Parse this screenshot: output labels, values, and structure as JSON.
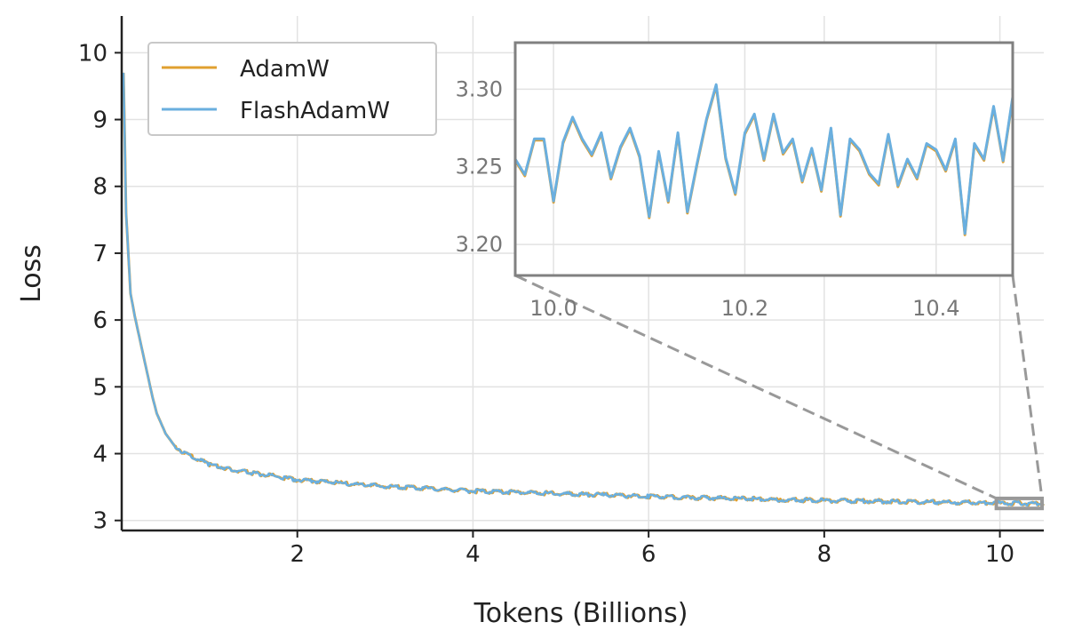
{
  "chart_data": {
    "type": "line",
    "xlabel": "Tokens (Billions)",
    "ylabel": "Loss",
    "xlim": [
      0,
      10.5
    ],
    "ylim": [
      2.85,
      10.55
    ],
    "xticks": [
      2,
      4,
      6,
      8,
      10
    ],
    "yticks": [
      3,
      4,
      5,
      6,
      7,
      8,
      9,
      10
    ],
    "grid": true,
    "legend": "upper-left",
    "series": [
      {
        "name": "AdamW",
        "color": "#e0a030",
        "x": [
          0.02,
          0.05,
          0.1,
          0.15,
          0.2,
          0.25,
          0.3,
          0.35,
          0.4,
          0.5,
          0.6,
          0.7,
          0.8,
          1.0,
          1.25,
          1.5,
          2.0,
          2.5,
          3.0,
          3.5,
          4.0,
          4.5,
          5.0,
          5.5,
          6.0,
          6.5,
          7.0,
          7.5,
          8.0,
          8.5,
          9.0,
          9.5,
          10.0,
          10.5
        ],
        "y": [
          9.7,
          7.6,
          6.4,
          6.05,
          5.75,
          5.45,
          5.15,
          4.85,
          4.6,
          4.3,
          4.12,
          4.02,
          3.95,
          3.84,
          3.76,
          3.71,
          3.61,
          3.56,
          3.51,
          3.48,
          3.44,
          3.42,
          3.4,
          3.38,
          3.36,
          3.34,
          3.33,
          3.31,
          3.3,
          3.29,
          3.28,
          3.27,
          3.26,
          3.25
        ]
      },
      {
        "name": "FlashAdamW",
        "color": "#6aafdf",
        "x": [
          0.02,
          0.05,
          0.1,
          0.15,
          0.2,
          0.25,
          0.3,
          0.35,
          0.4,
          0.5,
          0.6,
          0.7,
          0.8,
          1.0,
          1.25,
          1.5,
          2.0,
          2.5,
          3.0,
          3.5,
          4.0,
          4.5,
          5.0,
          5.5,
          6.0,
          6.5,
          7.0,
          7.5,
          8.0,
          8.5,
          9.0,
          9.5,
          10.0,
          10.5
        ],
        "y": [
          9.7,
          7.6,
          6.4,
          6.05,
          5.75,
          5.45,
          5.15,
          4.85,
          4.6,
          4.3,
          4.12,
          4.02,
          3.95,
          3.84,
          3.76,
          3.71,
          3.61,
          3.56,
          3.51,
          3.48,
          3.44,
          3.42,
          3.4,
          3.38,
          3.36,
          3.34,
          3.33,
          3.31,
          3.3,
          3.29,
          3.28,
          3.27,
          3.26,
          3.25
        ]
      }
    ],
    "inset": {
      "xlim": [
        9.96,
        10.48
      ],
      "ylim": [
        3.18,
        3.33
      ],
      "xticks": [
        10.0,
        10.2,
        10.4
      ],
      "xtick_labels": [
        "10.0",
        "10.2",
        "10.4"
      ],
      "yticks": [
        3.2,
        3.25,
        3.3
      ],
      "ytick_labels": [
        "3.20",
        "3.25",
        "3.30"
      ],
      "x": [
        9.96,
        9.97,
        9.98,
        9.99,
        10.0,
        10.01,
        10.02,
        10.03,
        10.04,
        10.05,
        10.06,
        10.07,
        10.08,
        10.09,
        10.1,
        10.11,
        10.12,
        10.13,
        10.14,
        10.15,
        10.16,
        10.17,
        10.18,
        10.19,
        10.2,
        10.21,
        10.22,
        10.23,
        10.24,
        10.25,
        10.26,
        10.27,
        10.28,
        10.29,
        10.3,
        10.31,
        10.32,
        10.33,
        10.34,
        10.35,
        10.36,
        10.37,
        10.38,
        10.39,
        10.4,
        10.41,
        10.42,
        10.43,
        10.44,
        10.45,
        10.46,
        10.47,
        10.48
      ],
      "y": [
        3.255,
        3.245,
        3.268,
        3.268,
        3.228,
        3.266,
        3.282,
        3.268,
        3.258,
        3.272,
        3.243,
        3.263,
        3.275,
        3.257,
        3.218,
        3.26,
        3.228,
        3.272,
        3.221,
        3.252,
        3.281,
        3.303,
        3.256,
        3.233,
        3.272,
        3.284,
        3.255,
        3.284,
        3.259,
        3.268,
        3.241,
        3.262,
        3.235,
        3.275,
        3.219,
        3.268,
        3.261,
        3.246,
        3.239,
        3.271,
        3.238,
        3.255,
        3.243,
        3.265,
        3.261,
        3.248,
        3.268,
        3.207,
        3.265,
        3.255,
        3.289,
        3.254,
        3.295
      ]
    }
  }
}
